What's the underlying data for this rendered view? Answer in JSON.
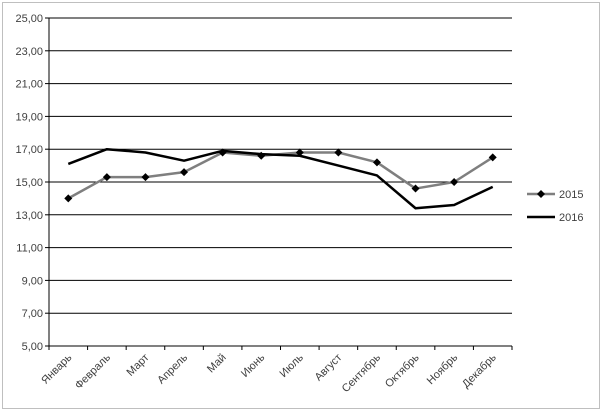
{
  "chart_data": {
    "type": "line",
    "title": "",
    "xlabel": "",
    "ylabel": "",
    "categories": [
      "Январь",
      "Февраль",
      "Март",
      "Апрель",
      "Май",
      "Июнь",
      "Июль",
      "Август",
      "Сентябрь",
      "Октябрь",
      "Ноябрь",
      "Декабрь"
    ],
    "ylim": [
      5,
      25
    ],
    "yticks": [
      "5,00",
      "7,00",
      "9,00",
      "11,00",
      "13,00",
      "15,00",
      "17,00",
      "19,00",
      "21,00",
      "23,00",
      "25,00"
    ],
    "grid": true,
    "legend_position": "right",
    "series": [
      {
        "name": "2015",
        "color": "#7f7f7f",
        "marker": "diamond",
        "values": [
          14.0,
          15.3,
          15.3,
          15.6,
          16.8,
          16.6,
          16.8,
          16.8,
          16.2,
          14.6,
          15.0,
          16.5
        ]
      },
      {
        "name": "2016",
        "color": "#000000",
        "marker": "none",
        "values": [
          16.1,
          17.0,
          16.8,
          16.3,
          16.9,
          16.7,
          16.6,
          16.0,
          15.4,
          13.4,
          13.6,
          14.7
        ]
      }
    ]
  }
}
